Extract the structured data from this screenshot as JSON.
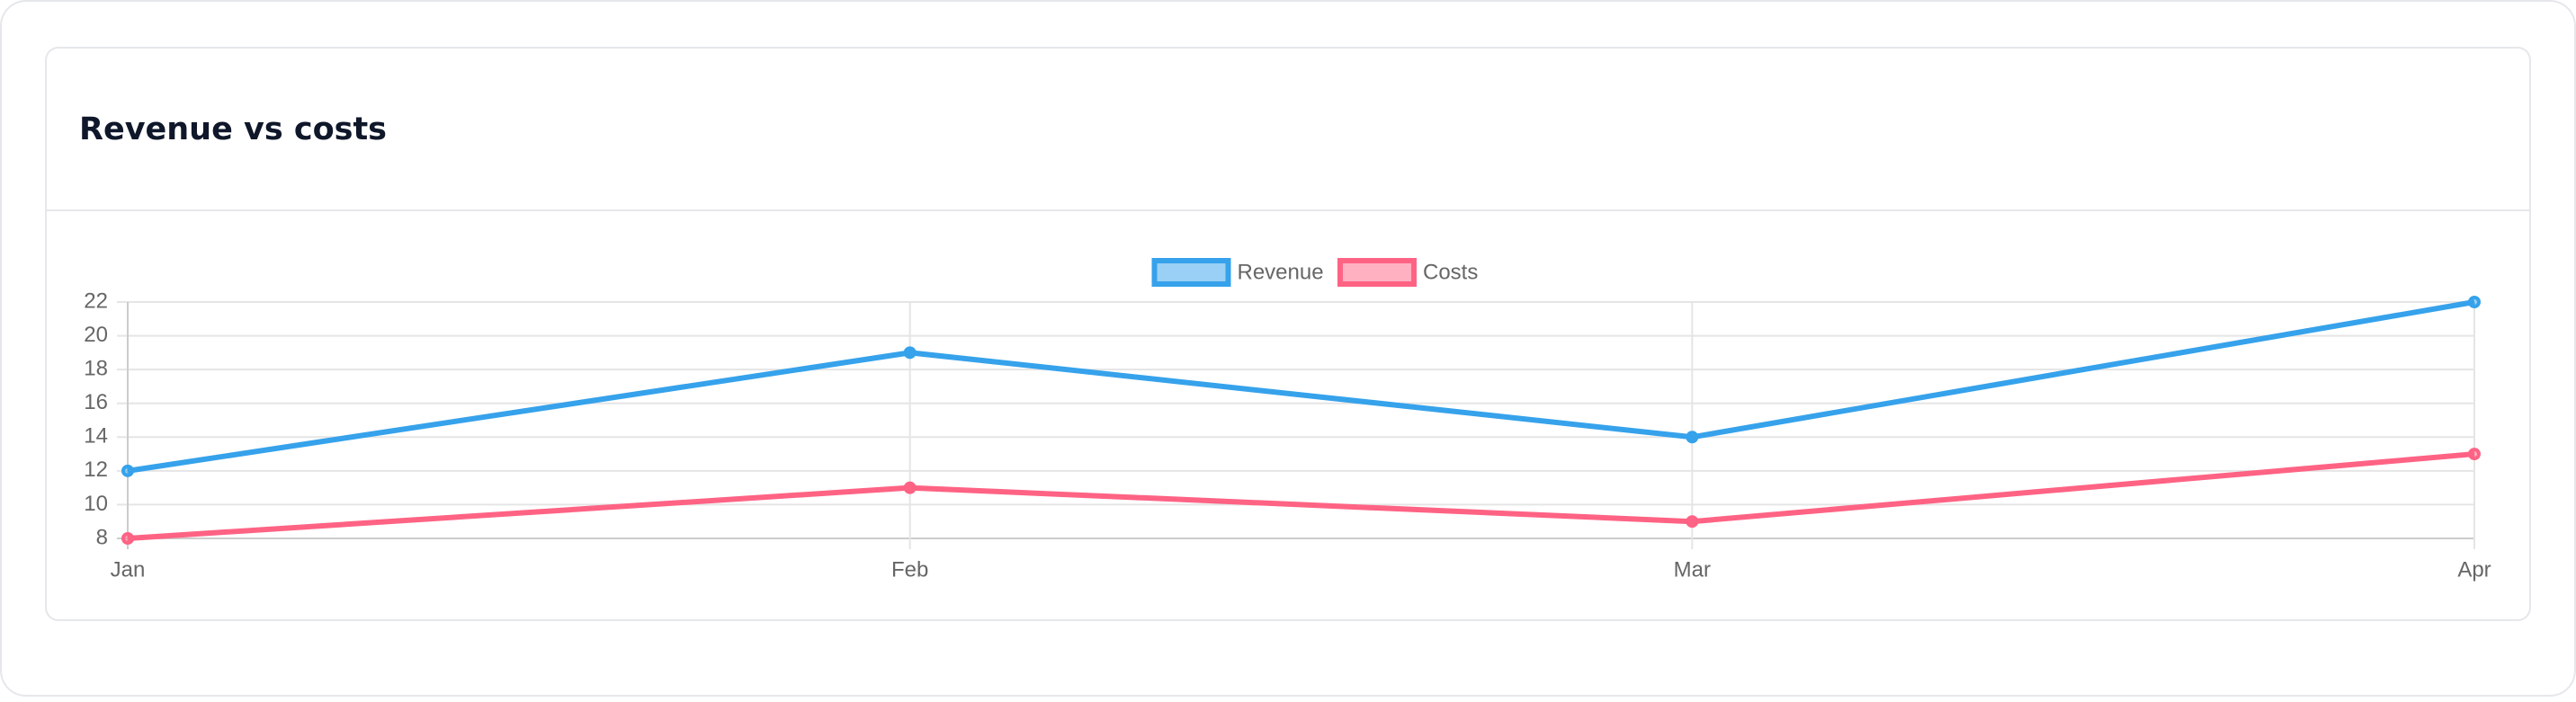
{
  "chart_data": {
    "type": "line",
    "title": "Revenue vs costs",
    "categories": [
      "Jan",
      "Feb",
      "Mar",
      "Apr"
    ],
    "series": [
      {
        "name": "Revenue",
        "color": "#36a2eb",
        "values": [
          12,
          19,
          14,
          22
        ]
      },
      {
        "name": "Costs",
        "color": "#ff6384",
        "values": [
          8,
          11,
          9,
          13
        ]
      }
    ],
    "ylim": [
      8,
      22
    ],
    "yticks": [
      8,
      10,
      12,
      14,
      16,
      18,
      20,
      22
    ],
    "grid": true,
    "legend": "top"
  }
}
